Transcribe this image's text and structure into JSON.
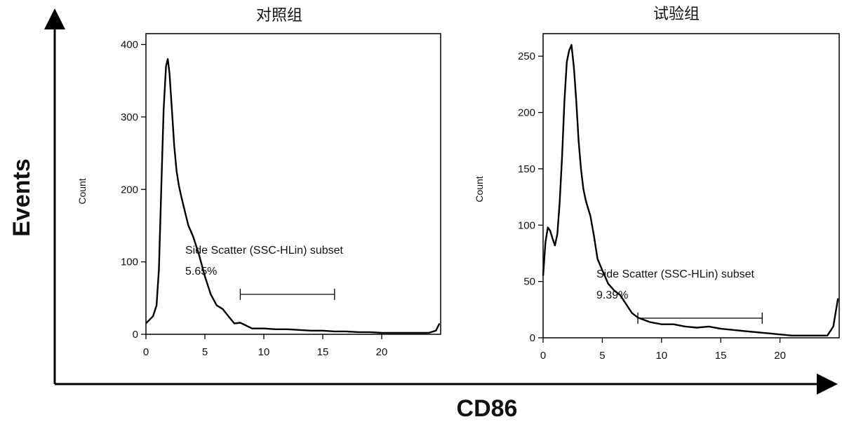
{
  "figure": {
    "ylabel": "Events",
    "xlabel": "CD86"
  },
  "chart_data": [
    {
      "type": "line",
      "title": "对照组",
      "ylabel": "Count",
      "xlim": [
        0,
        25
      ],
      "ylim": [
        0,
        415
      ],
      "xticks": [
        0,
        5,
        10,
        15,
        20
      ],
      "yticks": [
        0,
        100,
        200,
        300,
        400
      ],
      "gate": {
        "label": "Side Scatter (SSC-HLin) subset",
        "percent": "5.65%",
        "x_start": 8,
        "x_end": 16
      },
      "series": [
        {
          "x": [
            0,
            0.3,
            0.6,
            0.9,
            1.1,
            1.3,
            1.5,
            1.7,
            1.85,
            2.0,
            2.2,
            2.4,
            2.6,
            2.8,
            3.0,
            3.3,
            3.6,
            4.0,
            4.5,
            5.0,
            5.5,
            6.0,
            6.5,
            7.0,
            7.5,
            8.0,
            8.5,
            9,
            10,
            11,
            12,
            13,
            14,
            15,
            16,
            17,
            18,
            19,
            20,
            21,
            22,
            23,
            24,
            24.6,
            24.9
          ],
          "y": [
            15,
            20,
            25,
            40,
            90,
            200,
            310,
            370,
            380,
            360,
            310,
            260,
            225,
            205,
            190,
            170,
            150,
            135,
            110,
            80,
            55,
            40,
            35,
            25,
            15,
            16,
            12,
            8,
            8,
            7,
            7,
            6,
            5,
            5,
            4,
            4,
            3,
            3,
            2,
            2,
            2,
            2,
            2,
            5,
            15
          ]
        }
      ]
    },
    {
      "type": "line",
      "title": "试验组",
      "ylabel": "Count",
      "xlim": [
        0,
        25
      ],
      "ylim": [
        0,
        270
      ],
      "xticks": [
        0,
        5,
        10,
        15,
        20
      ],
      "yticks": [
        0,
        50,
        100,
        150,
        200,
        250
      ],
      "gate": {
        "label": "Side Scatter (SSC-HLin) subset",
        "percent": "9.39%",
        "x_start": 8,
        "x_end": 18.5
      },
      "series": [
        {
          "x": [
            0,
            0.2,
            0.4,
            0.6,
            0.8,
            1.0,
            1.2,
            1.4,
            1.6,
            1.8,
            2.0,
            2.2,
            2.4,
            2.6,
            2.8,
            3.0,
            3.2,
            3.4,
            3.6,
            3.8,
            4.0,
            4.3,
            4.6,
            5.0,
            5.5,
            6.0,
            6.5,
            7.0,
            7.5,
            8.0,
            9,
            10,
            11,
            12,
            13,
            14,
            15,
            16,
            17,
            18,
            19,
            20,
            21,
            22,
            23,
            24,
            24.5,
            24.9
          ],
          "y": [
            55,
            85,
            98,
            95,
            88,
            82,
            92,
            120,
            160,
            210,
            245,
            255,
            260,
            240,
            210,
            175,
            150,
            132,
            122,
            115,
            108,
            90,
            70,
            60,
            48,
            42,
            38,
            30,
            22,
            18,
            14,
            12,
            12,
            10,
            9,
            10,
            8,
            7,
            6,
            5,
            4,
            3,
            2,
            2,
            2,
            2,
            10,
            35
          ]
        }
      ]
    }
  ]
}
